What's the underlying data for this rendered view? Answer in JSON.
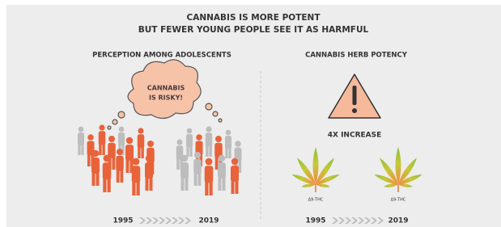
{
  "header": {
    "title": [
      "CANNABIS IS MORE POTENT",
      "BUT FEWER YOUNG PEOPLE SEE IT AS HARMFUL"
    ]
  },
  "left": {
    "heading": "PERCEPTION AMONG ADOLESCENTS",
    "bubble": [
      "CANNABIS",
      "IS RISKY!"
    ],
    "years": [
      "1995",
      "2019"
    ]
  },
  "right": {
    "heading": "CANNABIS HERB POTENCY",
    "callout": "4X INCREASE",
    "leaves": [
      "Δ9-THC",
      "Δ9-THC"
    ],
    "years": [
      "1995",
      "2019"
    ]
  }
}
